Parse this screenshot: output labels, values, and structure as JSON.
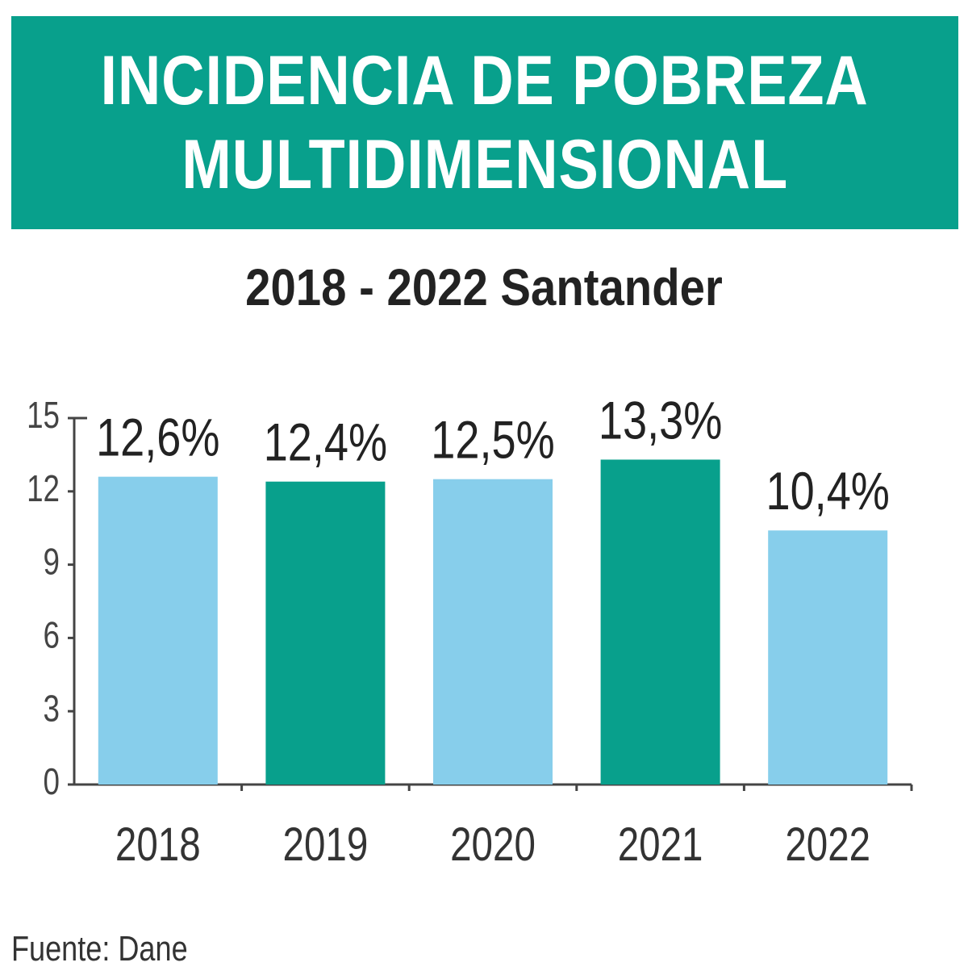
{
  "title": {
    "line1": "INCIDENCIA DE POBREZA",
    "line2": "MULTIDIMENSIONAL"
  },
  "subtitle": "2018 - 2022 Santander",
  "source": "Fuente: Dane",
  "colors": {
    "banner": "#08a08c",
    "bar_light": "#87ceeb",
    "bar_dark": "#08a08c",
    "axis": "#444444",
    "text": "#222222"
  },
  "chart_data": {
    "type": "bar",
    "title": "INCIDENCIA DE POBREZA MULTIDIMENSIONAL",
    "subtitle": "2018 - 2022 Santander",
    "categories": [
      "2018",
      "2019",
      "2020",
      "2021",
      "2022"
    ],
    "values": [
      12.6,
      12.4,
      12.5,
      13.3,
      10.4
    ],
    "data_labels": [
      "12,6%",
      "12,4%",
      "12,5%",
      "13,3%",
      "10,4%"
    ],
    "bar_colors": [
      "#87ceeb",
      "#08a08c",
      "#87ceeb",
      "#08a08c",
      "#87ceeb"
    ],
    "ylim": [
      0,
      15
    ],
    "yticks": [
      0,
      3,
      6,
      9,
      12,
      15
    ],
    "xlabel": "",
    "ylabel": "",
    "grid": false,
    "legend": false
  }
}
